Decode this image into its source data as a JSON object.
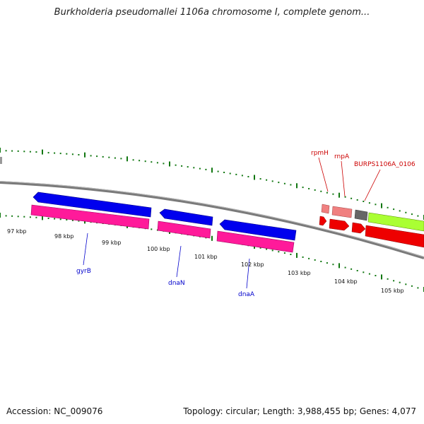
{
  "title": "Burkholderia pseudomallei 1106a chromosome I, complete genom...",
  "accession": "Accession: NC_009076",
  "summary": "Topology: circular; Length: 3,988,455 bp; Genes: 4,077",
  "scale_labels": [
    "97 kbp",
    "98 kbp",
    "99 kbp",
    "100 kbp",
    "101 kbp",
    "102 kbp",
    "103 kbp",
    "104 kbp",
    "105 kbp"
  ],
  "genes": [
    {
      "name": "gyrB",
      "color": "#0000cc"
    },
    {
      "name": "dnaN",
      "color": "#0000cc"
    },
    {
      "name": "dnaA",
      "color": "#0000cc"
    },
    {
      "name": "rpmH",
      "color": "#cc0000"
    },
    {
      "name": "rnpA",
      "color": "#cc0000"
    },
    {
      "name": "BURPS1106A_0106",
      "color": "#cc0000"
    }
  ],
  "colors": {
    "cds_blue": "#0000ee",
    "gene_pink": "#ff1493",
    "rna_salmon": "#f08080",
    "red": "#ee0000",
    "grey": "#666666",
    "lime": "#aaff33",
    "tick_green": "#117711",
    "backbone": "#808080"
  }
}
